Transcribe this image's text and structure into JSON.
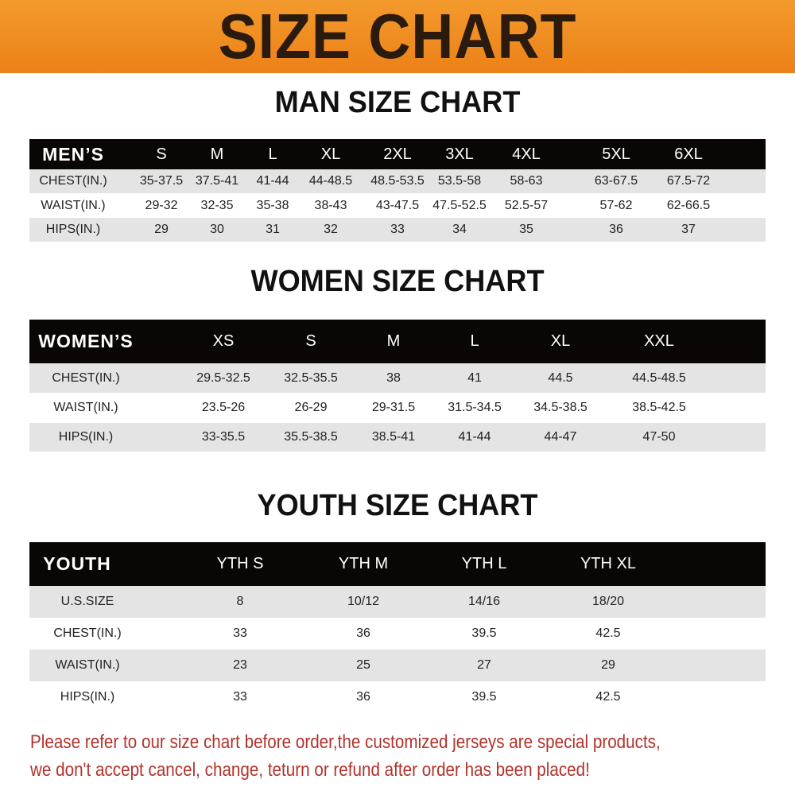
{
  "banner": {
    "title": "SIZE CHART",
    "color": "#ee8a1f"
  },
  "men": {
    "title": "MAN SIZE CHART",
    "header": [
      "MEN’S",
      "S",
      "M",
      "L",
      "XL",
      "2XL",
      "3XL",
      "4XL",
      "5XL",
      "6XL"
    ],
    "rows": [
      [
        "CHEST(IN.)",
        "35-37.5",
        "37.5-41",
        "41-44",
        "44-48.5",
        "48.5-53.5",
        "53.5-58",
        "58-63",
        "63-67.5",
        "67.5-72"
      ],
      [
        "WAIST(IN.)",
        "29-32",
        "32-35",
        "35-38",
        "38-43",
        "43-47.5",
        "47.5-52.5",
        "52.5-57",
        "57-62",
        "62-66.5"
      ],
      [
        "HIPS(IN.)",
        "29",
        "30",
        "31",
        "32",
        "33",
        "34",
        "35",
        "36",
        "37"
      ]
    ]
  },
  "women": {
    "title": "WOMEN SIZE CHART",
    "header": [
      "WOMEN’S",
      "XS",
      "S",
      "M",
      "L",
      "XL",
      "XXL"
    ],
    "rows": [
      [
        "CHEST(IN.)",
        "29.5-32.5",
        "32.5-35.5",
        "38",
        "41",
        "44.5",
        "44.5-48.5"
      ],
      [
        "WAIST(IN.)",
        "23.5-26",
        "26-29",
        "29-31.5",
        "31.5-34.5",
        "34.5-38.5",
        "38.5-42.5"
      ],
      [
        "HIPS(IN.)",
        "33-35.5",
        "35.5-38.5",
        "38.5-41",
        "41-44",
        "44-47",
        "47-50"
      ]
    ]
  },
  "youth": {
    "title": "YOUTH SIZE CHART",
    "header": [
      "YOUTH",
      "YTH S",
      "YTH M",
      "YTH L",
      "YTH XL"
    ],
    "rows": [
      [
        "U.S.SIZE",
        "8",
        "10/12",
        "14/16",
        "18/20"
      ],
      [
        "CHEST(IN.)",
        "33",
        "36",
        "39.5",
        "42.5"
      ],
      [
        "WAIST(IN.)",
        "23",
        "25",
        "27",
        "29"
      ],
      [
        "HIPS(IN.)",
        "33",
        "36",
        "39.5",
        "42.5"
      ]
    ]
  },
  "notice": {
    "line1": "Please refer to our size chart before order,the customized jerseys are special products,",
    "line2": "we don't accept cancel, change, teturn or refund after order has been placed!",
    "color": "#b3322b"
  }
}
